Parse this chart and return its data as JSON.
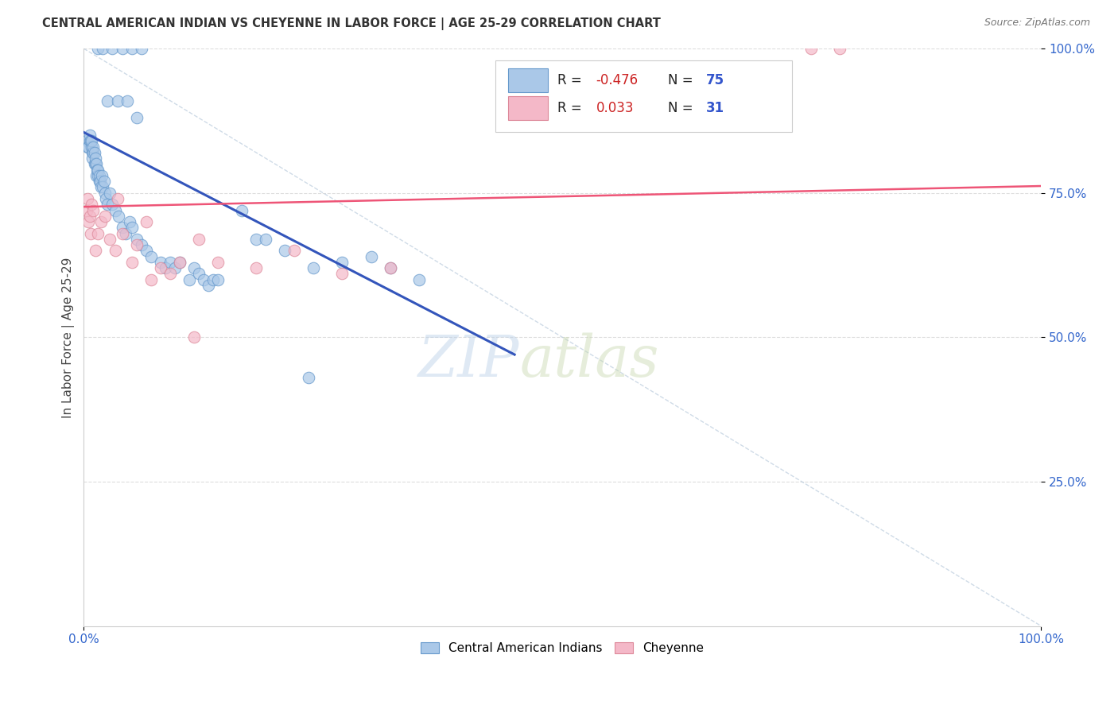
{
  "title": "CENTRAL AMERICAN INDIAN VS CHEYENNE IN LABOR FORCE | AGE 25-29 CORRELATION CHART",
  "source_text": "Source: ZipAtlas.com",
  "ylabel": "In Labor Force | Age 25-29",
  "xlim": [
    0,
    1
  ],
  "ylim": [
    0,
    1
  ],
  "xtick_labels": [
    "0.0%",
    "100.0%"
  ],
  "xtick_positions": [
    0,
    1
  ],
  "ytick_labels": [
    "100.0%",
    "75.0%",
    "50.0%",
    "25.0%"
  ],
  "ytick_positions": [
    1.0,
    0.75,
    0.5,
    0.25
  ],
  "grid_color": "#dddddd",
  "background_color": "#ffffff",
  "blue_color": "#aac8e8",
  "blue_edge_color": "#6699cc",
  "pink_color": "#f4b8c8",
  "pink_edge_color": "#dd8899",
  "blue_line_color": "#3355bb",
  "pink_line_color": "#ee5577",
  "legend_R_blue": "-0.476",
  "legend_N_blue": "75",
  "legend_R_pink": "0.033",
  "legend_N_pink": "31",
  "watermark_zip": "ZIP",
  "watermark_atlas": "atlas",
  "blue_trendline_x": [
    0.0,
    0.45
  ],
  "blue_trendline_y": [
    0.855,
    0.47
  ],
  "pink_trendline_x": [
    0.0,
    1.0
  ],
  "pink_trendline_y": [
    0.726,
    0.762
  ],
  "diag_line_x": [
    0.0,
    1.0
  ],
  "diag_line_y": [
    1.0,
    0.0
  ],
  "blue_x": [
    0.003,
    0.004,
    0.005,
    0.006,
    0.006,
    0.007,
    0.008,
    0.008,
    0.009,
    0.009,
    0.01,
    0.01,
    0.011,
    0.011,
    0.012,
    0.012,
    0.013,
    0.013,
    0.014,
    0.015,
    0.015,
    0.016,
    0.016,
    0.017,
    0.018,
    0.019,
    0.02,
    0.021,
    0.022,
    0.023,
    0.025,
    0.027,
    0.03,
    0.033,
    0.036,
    0.04,
    0.044,
    0.048,
    0.05,
    0.055,
    0.06,
    0.065,
    0.07,
    0.08,
    0.085,
    0.09,
    0.095,
    0.1,
    0.11,
    0.115,
    0.12,
    0.125,
    0.13,
    0.135,
    0.14,
    0.015,
    0.02,
    0.03,
    0.04,
    0.05,
    0.06,
    0.025,
    0.035,
    0.045,
    0.055,
    0.27,
    0.3,
    0.32,
    0.35,
    0.18,
    0.21,
    0.24,
    0.165,
    0.19,
    0.235
  ],
  "blue_y": [
    0.84,
    0.83,
    0.83,
    0.84,
    0.85,
    0.84,
    0.83,
    0.84,
    0.82,
    0.81,
    0.82,
    0.83,
    0.82,
    0.8,
    0.8,
    0.81,
    0.8,
    0.78,
    0.79,
    0.78,
    0.79,
    0.77,
    0.78,
    0.77,
    0.76,
    0.78,
    0.76,
    0.77,
    0.75,
    0.74,
    0.73,
    0.75,
    0.73,
    0.72,
    0.71,
    0.69,
    0.68,
    0.7,
    0.69,
    0.67,
    0.66,
    0.65,
    0.64,
    0.63,
    0.62,
    0.63,
    0.62,
    0.63,
    0.6,
    0.62,
    0.61,
    0.6,
    0.59,
    0.6,
    0.6,
    1.0,
    1.0,
    1.0,
    1.0,
    1.0,
    1.0,
    0.91,
    0.91,
    0.91,
    0.88,
    0.63,
    0.64,
    0.62,
    0.6,
    0.67,
    0.65,
    0.62,
    0.72,
    0.67,
    0.43
  ],
  "pink_x": [
    0.003,
    0.004,
    0.005,
    0.006,
    0.007,
    0.008,
    0.01,
    0.012,
    0.015,
    0.018,
    0.022,
    0.027,
    0.033,
    0.04,
    0.05,
    0.065,
    0.08,
    0.1,
    0.12,
    0.14,
    0.18,
    0.22,
    0.27,
    0.32,
    0.76,
    0.79,
    0.035,
    0.055,
    0.07,
    0.09,
    0.115
  ],
  "pink_y": [
    0.72,
    0.74,
    0.7,
    0.71,
    0.68,
    0.73,
    0.72,
    0.65,
    0.68,
    0.7,
    0.71,
    0.67,
    0.65,
    0.68,
    0.63,
    0.7,
    0.62,
    0.63,
    0.67,
    0.63,
    0.62,
    0.65,
    0.61,
    0.62,
    1.0,
    1.0,
    0.74,
    0.66,
    0.6,
    0.61,
    0.5
  ]
}
